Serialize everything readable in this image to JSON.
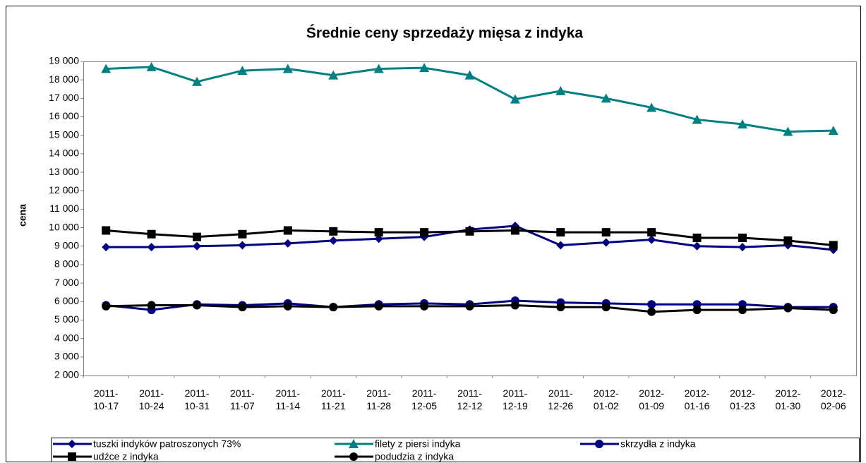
{
  "chart_data": {
    "type": "line",
    "title": "Średnie ceny sprzedaży mięsa z indyka",
    "y_label": "cena",
    "categories": [
      "2011-10-17",
      "2011-10-24",
      "2011-10-31",
      "2011-11-07",
      "2011-11-14",
      "2011-11-21",
      "2011-11-28",
      "2011-12-05",
      "2011-12-12",
      "2011-12-19",
      "2011-12-26",
      "2012-01-02",
      "2012-01-09",
      "2012-01-16",
      "2012-01-23",
      "2012-01-30",
      "2012-02-06"
    ],
    "ylim": [
      2000,
      19000
    ],
    "yticks": [
      {
        "value": 2000,
        "label": "2 000"
      },
      {
        "value": 3000,
        "label": "3 000"
      },
      {
        "value": 4000,
        "label": "4 000"
      },
      {
        "value": 5000,
        "label": "5 000"
      },
      {
        "value": 6000,
        "label": "6 000"
      },
      {
        "value": 7000,
        "label": "7 000"
      },
      {
        "value": 8000,
        "label": "8 000"
      },
      {
        "value": 9000,
        "label": "9 000"
      },
      {
        "value": 10000,
        "label": "10 000"
      },
      {
        "value": 11000,
        "label": "11 000"
      },
      {
        "value": 12000,
        "label": "12 000"
      },
      {
        "value": 13000,
        "label": "13 000"
      },
      {
        "value": 14000,
        "label": "14 000"
      },
      {
        "value": 15000,
        "label": "15 000"
      },
      {
        "value": 16000,
        "label": "16 000"
      },
      {
        "value": 17000,
        "label": "17 000"
      },
      {
        "value": 18000,
        "label": "18 000"
      },
      {
        "value": 19000,
        "label": "19 000"
      }
    ],
    "legend": "bottom",
    "series": [
      {
        "name": "tuszki indyków patroszonych 73%",
        "color": "#000080",
        "marker": "diamond",
        "values": [
          8950,
          8950,
          9000,
          9050,
          9150,
          9300,
          9400,
          9500,
          9900,
          10100,
          9050,
          9200,
          9350,
          9000,
          8950,
          9050,
          8800
        ]
      },
      {
        "name": "filety z piersi indyka",
        "color": "#008080",
        "marker": "triangle",
        "values": [
          18600,
          18700,
          17900,
          18500,
          18600,
          18250,
          18600,
          18650,
          18250,
          16950,
          17400,
          17000,
          16500,
          15850,
          15600,
          15200,
          15250
        ]
      },
      {
        "name": "skrzydła z indyka",
        "color": "#000080",
        "marker": "circle",
        "values": [
          5800,
          5550,
          5850,
          5800,
          5900,
          5700,
          5850,
          5900,
          5850,
          6050,
          5950,
          5900,
          5850,
          5850,
          5850,
          5700,
          5700
        ]
      },
      {
        "name": "udźce z indyka",
        "color": "#000000",
        "marker": "square",
        "values": [
          9850,
          9650,
          9500,
          9650,
          9850,
          9800,
          9750,
          9750,
          9800,
          9850,
          9750,
          9750,
          9750,
          9450,
          9450,
          9300,
          9050
        ]
      },
      {
        "name": "podudzia z indyka",
        "color": "#000000",
        "marker": "circle",
        "values": [
          5750,
          5800,
          5800,
          5700,
          5750,
          5700,
          5750,
          5750,
          5750,
          5800,
          5700,
          5700,
          5450,
          5550,
          5550,
          5650,
          5550
        ]
      }
    ]
  }
}
